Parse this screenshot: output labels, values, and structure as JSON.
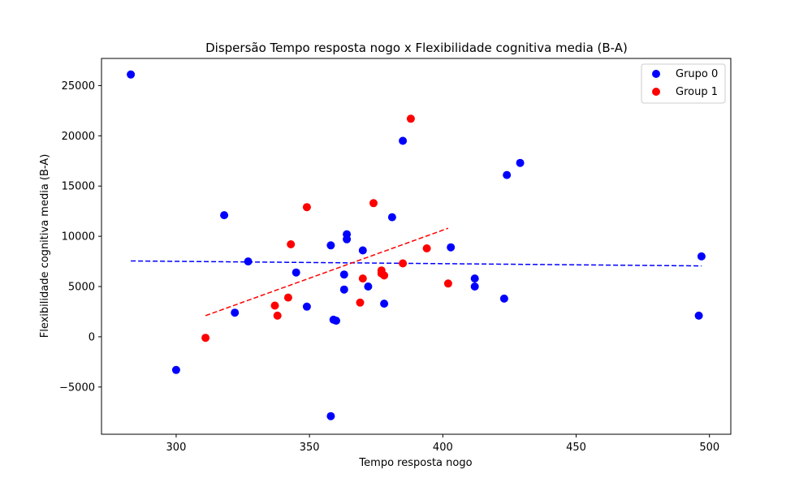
{
  "chart_data": {
    "type": "scatter",
    "title": "Dispersão Tempo resposta nogo x Flexibilidade cognitiva media (B-A)",
    "xlabel": "Tempo resposta nogo",
    "ylabel": "Flexibilidade cognitiva media (B-A)",
    "xlim": [
      272,
      508
    ],
    "ylim": [
      -9700,
      27700
    ],
    "xticks": [
      300,
      350,
      400,
      450,
      500
    ],
    "yticks": [
      -5000,
      0,
      5000,
      10000,
      15000,
      20000,
      25000
    ],
    "ytick_labels": [
      "−5000",
      "0",
      "5000",
      "10000",
      "15000",
      "20000",
      "25000"
    ],
    "grid": false,
    "legend_position": "top-right",
    "series": [
      {
        "name": "Grupo 0",
        "color": "#0000ff",
        "points": [
          [
            283,
            26100
          ],
          [
            300,
            -3300
          ],
          [
            318,
            12100
          ],
          [
            322,
            2400
          ],
          [
            327,
            7500
          ],
          [
            345,
            6400
          ],
          [
            349,
            3000
          ],
          [
            358,
            9100
          ],
          [
            358,
            -7900
          ],
          [
            359,
            1700
          ],
          [
            360,
            1600
          ],
          [
            363,
            6200
          ],
          [
            363,
            4700
          ],
          [
            364,
            9700
          ],
          [
            364,
            10200
          ],
          [
            370,
            8600
          ],
          [
            372,
            5000
          ],
          [
            378,
            3300
          ],
          [
            381,
            11900
          ],
          [
            385,
            19500
          ],
          [
            403,
            8900
          ],
          [
            412,
            5800
          ],
          [
            412,
            5000
          ],
          [
            423,
            3800
          ],
          [
            424,
            16100
          ],
          [
            429,
            17300
          ],
          [
            496,
            2100
          ],
          [
            497,
            8000
          ]
        ],
        "trend": {
          "x": [
            283,
            497
          ],
          "y": [
            7550,
            7050
          ]
        }
      },
      {
        "name": "Group 1",
        "color": "#ff0000",
        "points": [
          [
            311,
            -100
          ],
          [
            337,
            3100
          ],
          [
            338,
            2100
          ],
          [
            342,
            3900
          ],
          [
            343,
            9200
          ],
          [
            349,
            12900
          ],
          [
            369,
            3400
          ],
          [
            370,
            5800
          ],
          [
            374,
            13300
          ],
          [
            377,
            6300
          ],
          [
            377,
            6600
          ],
          [
            378,
            6100
          ],
          [
            385,
            7300
          ],
          [
            388,
            21700
          ],
          [
            394,
            8800
          ],
          [
            402,
            5300
          ]
        ],
        "trend": {
          "x": [
            311,
            402
          ],
          "y": [
            2100,
            10800
          ]
        }
      }
    ]
  }
}
